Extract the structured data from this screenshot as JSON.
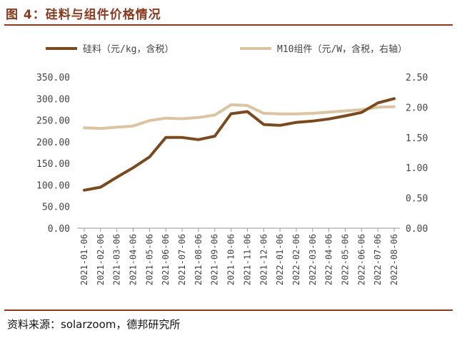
{
  "header": {
    "title": "图 4：硅料与组件价格情况"
  },
  "footer": {
    "source": "资料来源：solarzoom，德邦研究所"
  },
  "chart_data": {
    "type": "line",
    "x": [
      "2021-01-06",
      "2021-02-06",
      "2021-03-06",
      "2021-04-06",
      "2021-05-06",
      "2021-06-06",
      "2021-07-06",
      "2021-08-06",
      "2021-09-06",
      "2021-10-06",
      "2021-11-06",
      "2021-12-06",
      "2022-01-06",
      "2022-02-06",
      "2022-03-06",
      "2022-04-06",
      "2022-05-06",
      "2022-06-06",
      "2022-07-06",
      "2022-08-06"
    ],
    "series": [
      {
        "name": "硅料（元/kg，含税）",
        "axis": "left",
        "color": "#7a4a1e",
        "values": [
          88,
          95,
          118,
          140,
          165,
          210,
          210,
          205,
          213,
          265,
          270,
          240,
          238,
          245,
          248,
          253,
          260,
          268,
          290,
          300
        ]
      },
      {
        "name": "M10组件（元/W，含税，右轴）",
        "axis": "right",
        "color": "#dcc4a2",
        "values": [
          1.66,
          1.65,
          1.67,
          1.69,
          1.78,
          1.82,
          1.81,
          1.83,
          1.87,
          2.04,
          2.03,
          1.9,
          1.89,
          1.89,
          1.9,
          1.92,
          1.94,
          1.96,
          2.0,
          2.01
        ]
      }
    ],
    "yleft": {
      "ylim": [
        0,
        350
      ],
      "ticks": [
        "0.00",
        "50.00",
        "100.00",
        "150.00",
        "200.00",
        "250.00",
        "300.00",
        "350.00"
      ]
    },
    "yright": {
      "ylim": [
        0,
        2.5
      ],
      "ticks": [
        "0.00",
        "0.50",
        "1.00",
        "1.50",
        "2.00",
        "2.50"
      ]
    },
    "legend": "top",
    "grid": false
  }
}
